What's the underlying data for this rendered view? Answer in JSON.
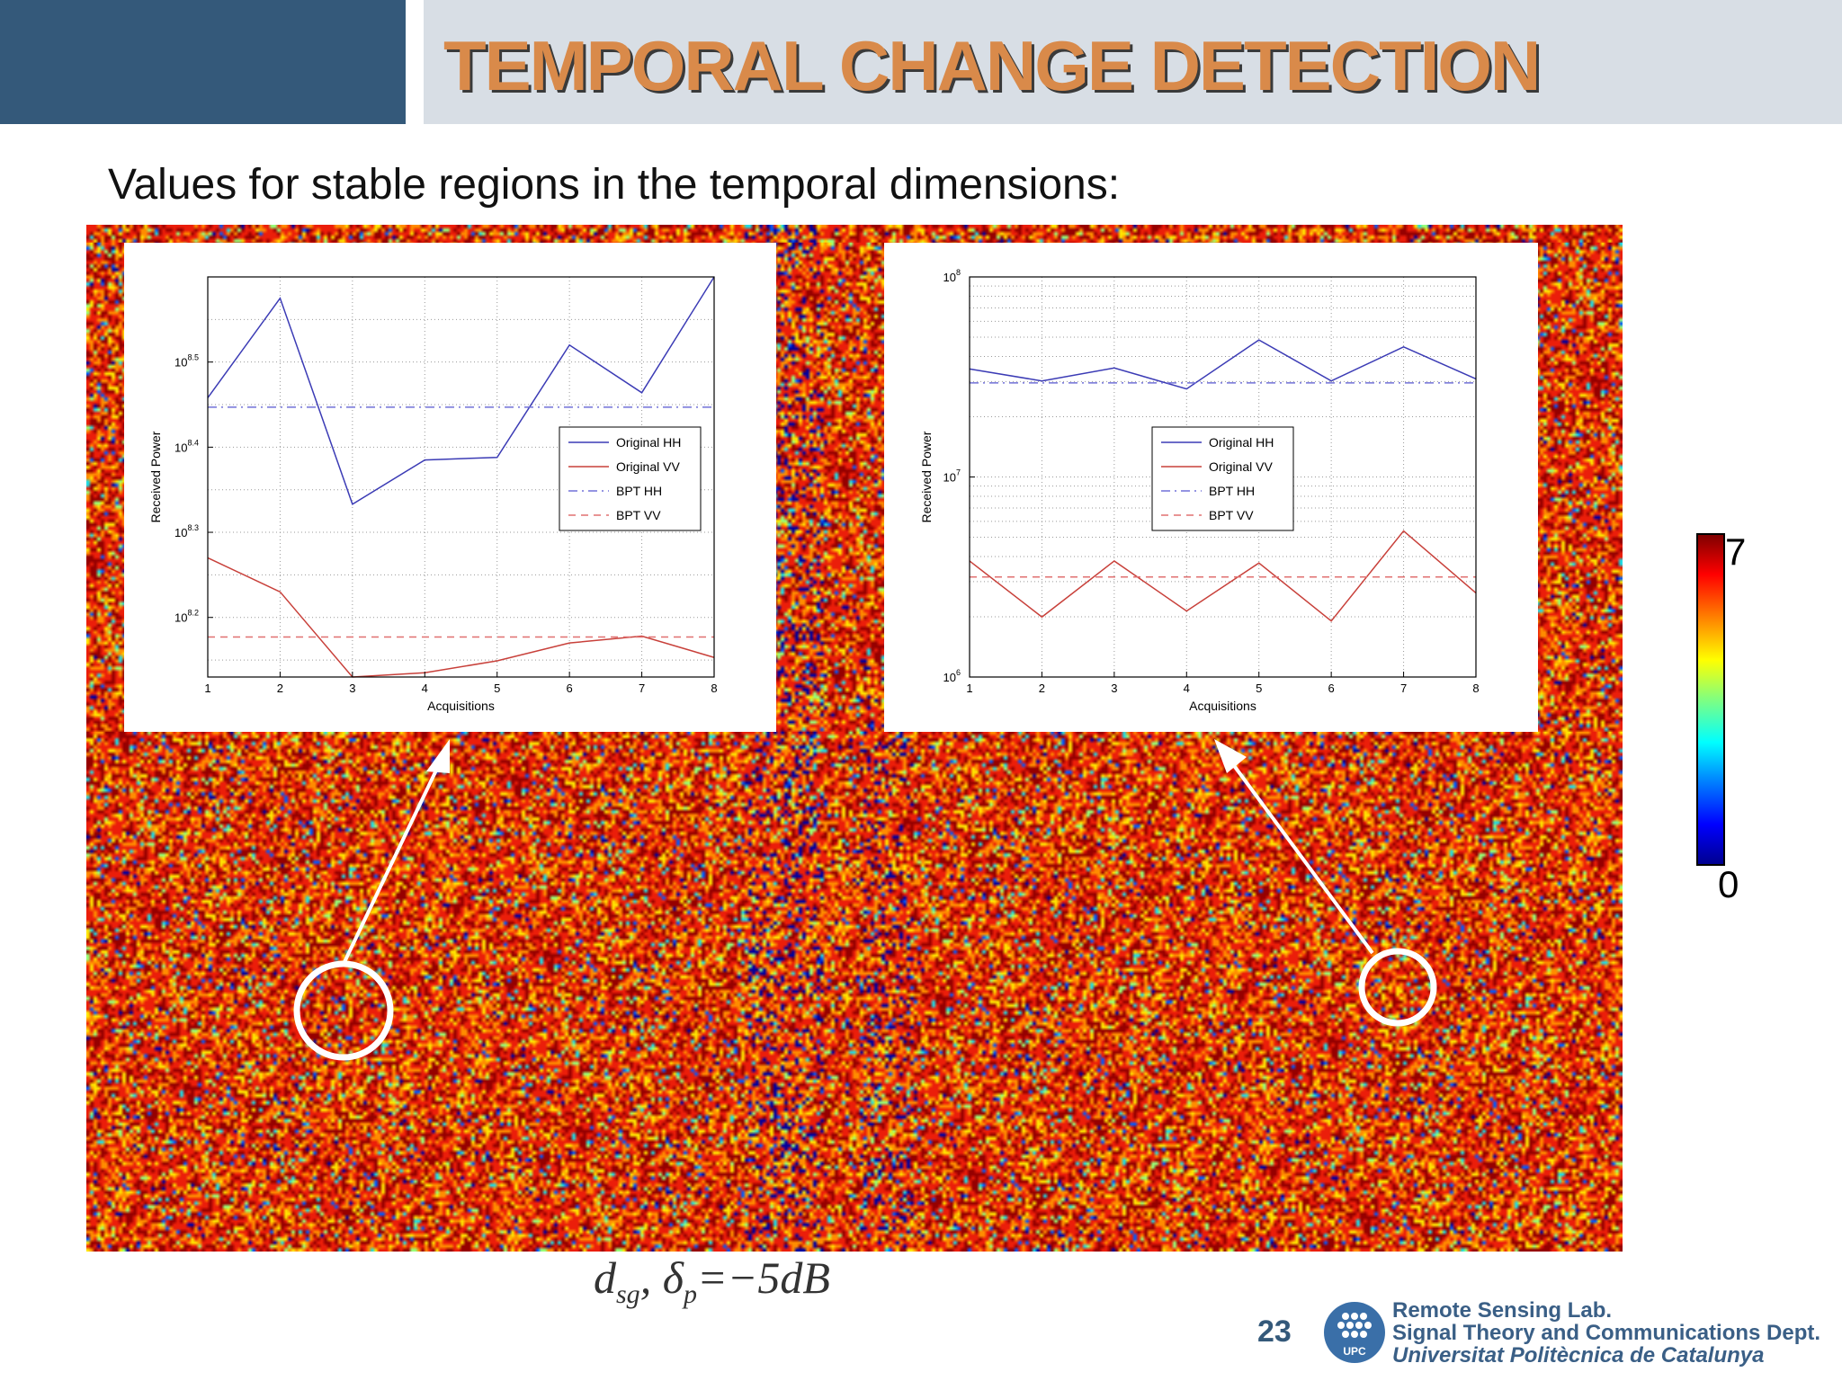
{
  "slide": {
    "title": "TEMPORAL CHANGE DETECTION",
    "subtitle": "Values for stable regions in the temporal dimensions:",
    "formula_main": "d",
    "formula_sub1": "sg",
    "formula_mid": ", δ",
    "formula_sub2": "p",
    "formula_tail": "=−5dB",
    "page_number": "23",
    "lab_line1": "Remote Sensing Lab.",
    "lab_line2": "Signal Theory and Communications Dept.",
    "lab_line3": "Universitat Politècnica de Catalunya",
    "logo_text": "UPC",
    "colorbar": {
      "max_label": "7",
      "min_label": "0"
    }
  },
  "chart_data": [
    {
      "type": "line",
      "xlabel": "Acquisitions",
      "ylabel": "Received Power",
      "y_scale": "log",
      "x": [
        1,
        2,
        3,
        4,
        5,
        6,
        7,
        8
      ],
      "xlim": [
        1,
        8
      ],
      "ylim_exp": [
        8.13,
        8.6
      ],
      "ytick_exps": [
        "8.2",
        "8.3",
        "8.4",
        "8.5"
      ],
      "grid": true,
      "legend_position": "right",
      "series": [
        {
          "name": "Original HH",
          "color": "#3b3bb5",
          "style": "solid",
          "log10_values": [
            8.458,
            8.575,
            8.333,
            8.385,
            8.388,
            8.52,
            8.464,
            8.6
          ]
        },
        {
          "name": "Original VV",
          "color": "#c8403a",
          "style": "solid",
          "log10_values": [
            8.27,
            8.23,
            8.13,
            8.135,
            8.149,
            8.17,
            8.178,
            8.153
          ]
        },
        {
          "name": "BPT HH",
          "color": "#7070d8",
          "style": "dashdot",
          "log10_values": [
            8.447,
            8.447,
            8.447,
            8.447,
            8.447,
            8.447,
            8.447,
            8.447
          ]
        },
        {
          "name": "BPT VV",
          "color": "#e07070",
          "style": "dashed",
          "log10_values": [
            8.177,
            8.177,
            8.177,
            8.177,
            8.177,
            8.177,
            8.177,
            8.177
          ]
        }
      ]
    },
    {
      "type": "line",
      "xlabel": "Acquisitions",
      "ylabel": "Received Power",
      "y_scale": "log",
      "x": [
        1,
        2,
        3,
        4,
        5,
        6,
        7,
        8
      ],
      "xlim": [
        1,
        8
      ],
      "ylim_exp": [
        6,
        8
      ],
      "ytick_exps": [
        "6",
        "7",
        "8"
      ],
      "grid": true,
      "legend_position": "center",
      "series": [
        {
          "name": "Original HH",
          "color": "#3b3bb5",
          "style": "solid",
          "log10_values": [
            7.54,
            7.48,
            7.545,
            7.44,
            7.685,
            7.48,
            7.65,
            7.49
          ]
        },
        {
          "name": "Original VV",
          "color": "#c8403a",
          "style": "solid",
          "log10_values": [
            6.58,
            6.3,
            6.58,
            6.33,
            6.57,
            6.28,
            6.73,
            6.42
          ]
        },
        {
          "name": "BPT HH",
          "color": "#7070d8",
          "style": "dashdot",
          "log10_values": [
            7.47,
            7.47,
            7.47,
            7.47,
            7.47,
            7.47,
            7.47,
            7.47
          ]
        },
        {
          "name": "BPT VV",
          "color": "#e07070",
          "style": "dashed",
          "log10_values": [
            6.5,
            6.5,
            6.5,
            6.5,
            6.5,
            6.5,
            6.5,
            6.5
          ]
        }
      ]
    }
  ]
}
